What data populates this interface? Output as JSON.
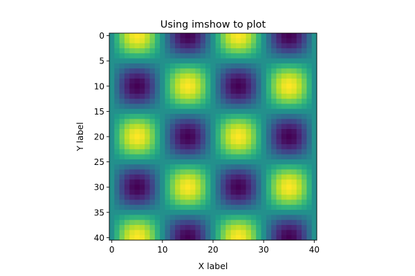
{
  "chart_data": {
    "type": "heatmap",
    "title": "Using imshow to plot",
    "xlabel": "X label",
    "ylabel": "Y label",
    "grid": false,
    "legend": "none",
    "colormap": "viridis",
    "colormap_colors": [
      "#440154",
      "#482878",
      "#3e4989",
      "#31688e",
      "#26828e",
      "#1f9e89",
      "#35b779",
      "#6ece58",
      "#b5de2b",
      "#fde725"
    ],
    "function": "sin(2*pi*x/20) * sin(2*pi*(y+5)/20)",
    "x": [
      0,
      1,
      2,
      3,
      4,
      5,
      6,
      7,
      8,
      9,
      10,
      11,
      12,
      13,
      14,
      15,
      16,
      17,
      18,
      19,
      20,
      21,
      22,
      23,
      24,
      25,
      26,
      27,
      28,
      29,
      30,
      31,
      32,
      33,
      34,
      35,
      36,
      37,
      38,
      39,
      40
    ],
    "y": [
      0,
      1,
      2,
      3,
      4,
      5,
      6,
      7,
      8,
      9,
      10,
      11,
      12,
      13,
      14,
      15,
      16,
      17,
      18,
      19,
      20,
      21,
      22,
      23,
      24,
      25,
      26,
      27,
      28,
      29,
      30,
      31,
      32,
      33,
      34,
      35,
      36,
      37,
      38,
      39,
      40
    ],
    "xlim": [
      -0.5,
      40.5
    ],
    "ylim": [
      40.5,
      -0.5
    ],
    "vlim": [
      -1,
      1
    ],
    "xticks": [
      "0",
      "10",
      "20",
      "30",
      "40"
    ],
    "yticks": [
      "0",
      "5",
      "10",
      "15",
      "20",
      "25",
      "30",
      "35",
      "40"
    ]
  }
}
